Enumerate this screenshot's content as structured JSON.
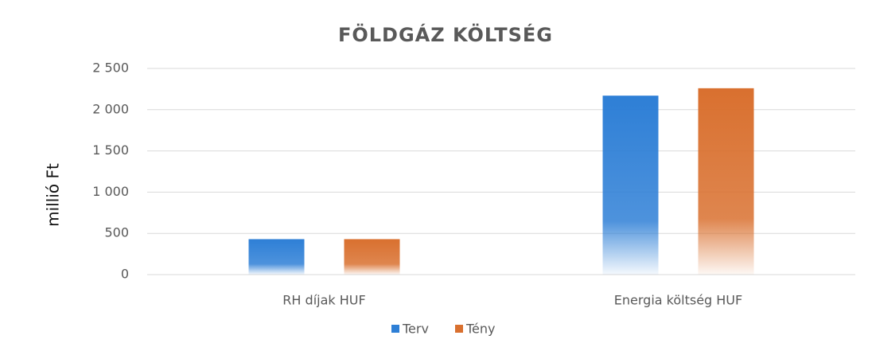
{
  "chart_data": {
    "type": "bar",
    "title": "FÖLDGÁZ KÖLTSÉG",
    "y_label": "millió Ft",
    "categories": [
      "RH díjak HUF",
      "Energia költség HUF"
    ],
    "series": [
      {
        "name": "Terv",
        "color": "#2e7fd6",
        "values": [
          430,
          2170
        ]
      },
      {
        "name": "Tény",
        "color": "#d9702f",
        "values": [
          430,
          2260
        ]
      }
    ],
    "ylim": [
      0,
      2500
    ],
    "yticks": [
      0,
      500,
      {
        "value": 1000,
        "label": "1 000"
      },
      {
        "value": 1500,
        "label": "1 500"
      },
      {
        "value": 2000,
        "label": "2 000"
      },
      {
        "value": 2500,
        "label": "2 500"
      }
    ],
    "grid": true,
    "legend": "bottom"
  }
}
